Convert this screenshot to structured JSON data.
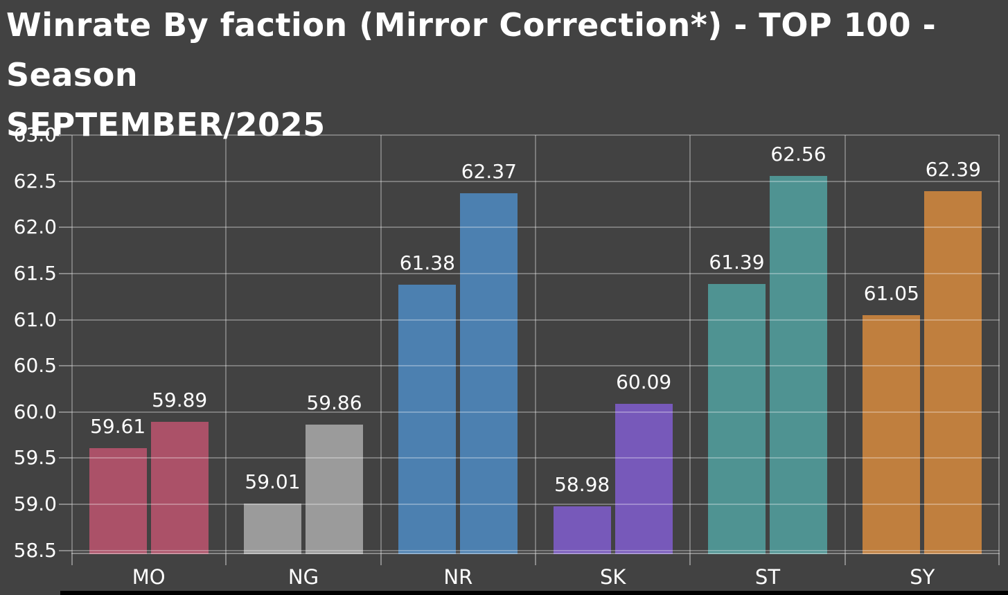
{
  "page": {
    "background": "#424242",
    "bottom_strip_color": "#000000"
  },
  "title": {
    "text": "Winrate By faction (Mirror Correction*) - TOP 100 - Season\nSEPTEMBER/2025"
  },
  "chart_data": {
    "type": "bar",
    "title": "Winrate By faction (Mirror Correction*) - TOP 100 - Season SEPTEMBER/2025",
    "categories": [
      "MO",
      "NG",
      "NR",
      "SK",
      "ST",
      "SY"
    ],
    "series": [
      {
        "name": "bar-left",
        "values": [
          59.61,
          59.01,
          61.38,
          58.98,
          61.39,
          61.05
        ]
      },
      {
        "name": "bar-right",
        "values": [
          59.89,
          59.86,
          62.37,
          60.09,
          62.56,
          62.39
        ]
      }
    ],
    "category_colors": [
      "#ab5168",
      "#9b9b9b",
      "#4c80b0",
      "#7759ba",
      "#4f9392",
      "#c07f3e"
    ],
    "xlabel": "",
    "ylabel": "",
    "ylim": [
      58.46,
      63.0
    ],
    "yticks": [
      58.5,
      59.0,
      59.5,
      60.0,
      60.5,
      61.0,
      61.5,
      62.0,
      62.5,
      63.0
    ],
    "grid": true,
    "value_labels_visible": true,
    "legend": "none",
    "text_color": "#ffffff",
    "grid_color": "rgba(255,255,255,0.30)",
    "tick_color": "#8a8a8a",
    "background": "#424242"
  }
}
